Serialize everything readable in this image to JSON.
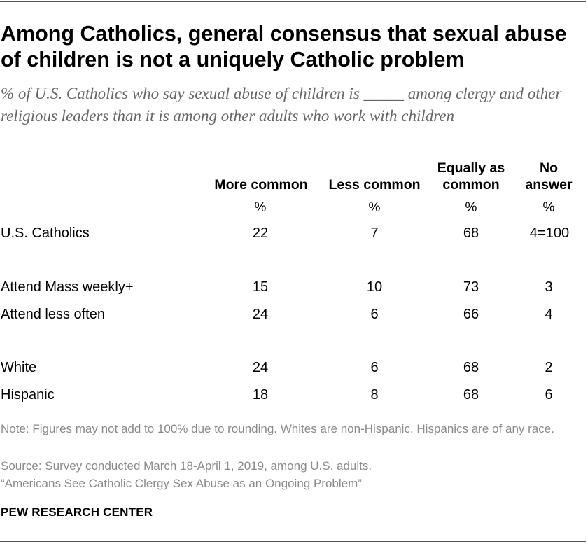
{
  "title": "Among Catholics, general consensus that sexual abuse of children is not a uniquely Catholic problem",
  "subtitle": "% of U.S. Catholics who say sexual abuse of children is _____ among clergy and other religious leaders than it is among other adults who work with children",
  "chart_data": {
    "type": "table",
    "columns": [
      {
        "line1": "",
        "line2": "More common",
        "unit": "%"
      },
      {
        "line1": "",
        "line2": "Less common",
        "unit": "%"
      },
      {
        "line1": "Equally as",
        "line2": "common",
        "unit": "%"
      },
      {
        "line1": "No",
        "line2": "answer",
        "unit": "%"
      }
    ],
    "rows": [
      {
        "label": "U.S. Catholics",
        "values": [
          "22",
          "7",
          "68",
          "4=100"
        ]
      },
      {
        "label": "Attend Mass weekly+",
        "values": [
          "15",
          "10",
          "73",
          "3"
        ]
      },
      {
        "label": "Attend less often",
        "values": [
          "24",
          "6",
          "66",
          "4"
        ]
      },
      {
        "label": "White",
        "values": [
          "24",
          "6",
          "68",
          "2"
        ]
      },
      {
        "label": "Hispanic",
        "values": [
          "18",
          "8",
          "68",
          "6"
        ]
      }
    ]
  },
  "notes": {
    "note": "Note: Figures may not add to 100% due to rounding. Whites are non-Hispanic. Hispanics are of any race.",
    "source": "Source: Survey conducted March 18-April 1, 2019, among U.S. adults.",
    "report": "“Americans See Catholic Clergy Sex Abuse as an Ongoing Problem”"
  },
  "org": "PEW RESEARCH CENTER"
}
